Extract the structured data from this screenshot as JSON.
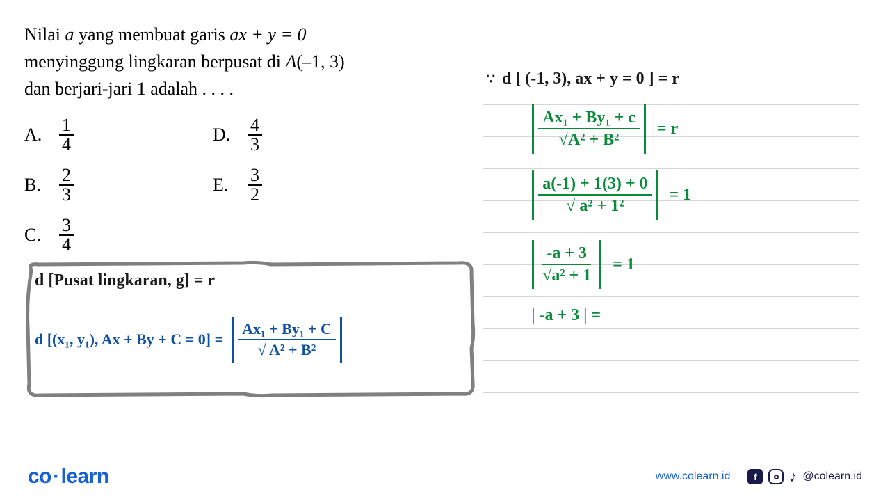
{
  "question": {
    "line1_pre": "Nilai ",
    "line1_var_a": "a",
    "line1_mid": " yang membuat garis ",
    "line1_eq": "ax + y = 0",
    "line2_pre": "menyinggung lingkaran berpusat di ",
    "line2_point_label": "A",
    "line2_point": "(–1, 3)",
    "line3": "dan berjari-jari 1 adalah . . . ."
  },
  "options": {
    "A": {
      "num": "1",
      "den": "4"
    },
    "B": {
      "num": "2",
      "den": "3"
    },
    "C": {
      "num": "3",
      "den": "4"
    },
    "D": {
      "num": "4",
      "den": "3"
    },
    "E": {
      "num": "3",
      "den": "2"
    }
  },
  "labels": {
    "A": "A.",
    "B": "B.",
    "C": "C.",
    "D": "D.",
    "E": "E."
  },
  "box": {
    "line1": "d [Pusat lingkaran, g] = r",
    "line2_left": "d [(x₁, y₁), Ax + By + C = 0] =",
    "line2_frac_num": "Ax₁ + By₁ + C",
    "line2_frac_den": "√ A² + B²"
  },
  "work": {
    "header_black": "d [ (-1, 3), ax + y = 0 ] = r",
    "bullets": "∵",
    "f1_num": "Ax₁ + By₁ + c",
    "f1_den": "√A² + B²",
    "f1_rhs": "= r",
    "f2_num": "a(-1) + 1(3) + 0",
    "f2_den": "√ a² + 1²",
    "f2_rhs": "= 1",
    "f3_num": "-a + 3",
    "f3_den": "√a² + 1",
    "f3_rhs": "= 1",
    "f4": "| -a + 3 | ="
  },
  "footer": {
    "logo_co": "co",
    "logo_learn": "learn",
    "website": "www.colearn.id",
    "handle": "@colearn.id"
  },
  "styling": {
    "page_bg": "#ffffff",
    "text_color": "#000000",
    "handwriting_black": "#1a1a1a",
    "handwriting_green": "#0a8a3a",
    "handwriting_blue": "#1050a0",
    "rule_line_color": "#d5d5d5",
    "box_border_color": "#808080",
    "logo_color": "#1560d4",
    "social_color": "#1a1a4a",
    "question_fontsize": 26,
    "option_fontsize": 26,
    "handwriting_fontsize": 24,
    "logo_fontsize": 30,
    "footer_fontsize": 16,
    "ruled_line_spacing": 46,
    "ruled_line_count": 10
  }
}
